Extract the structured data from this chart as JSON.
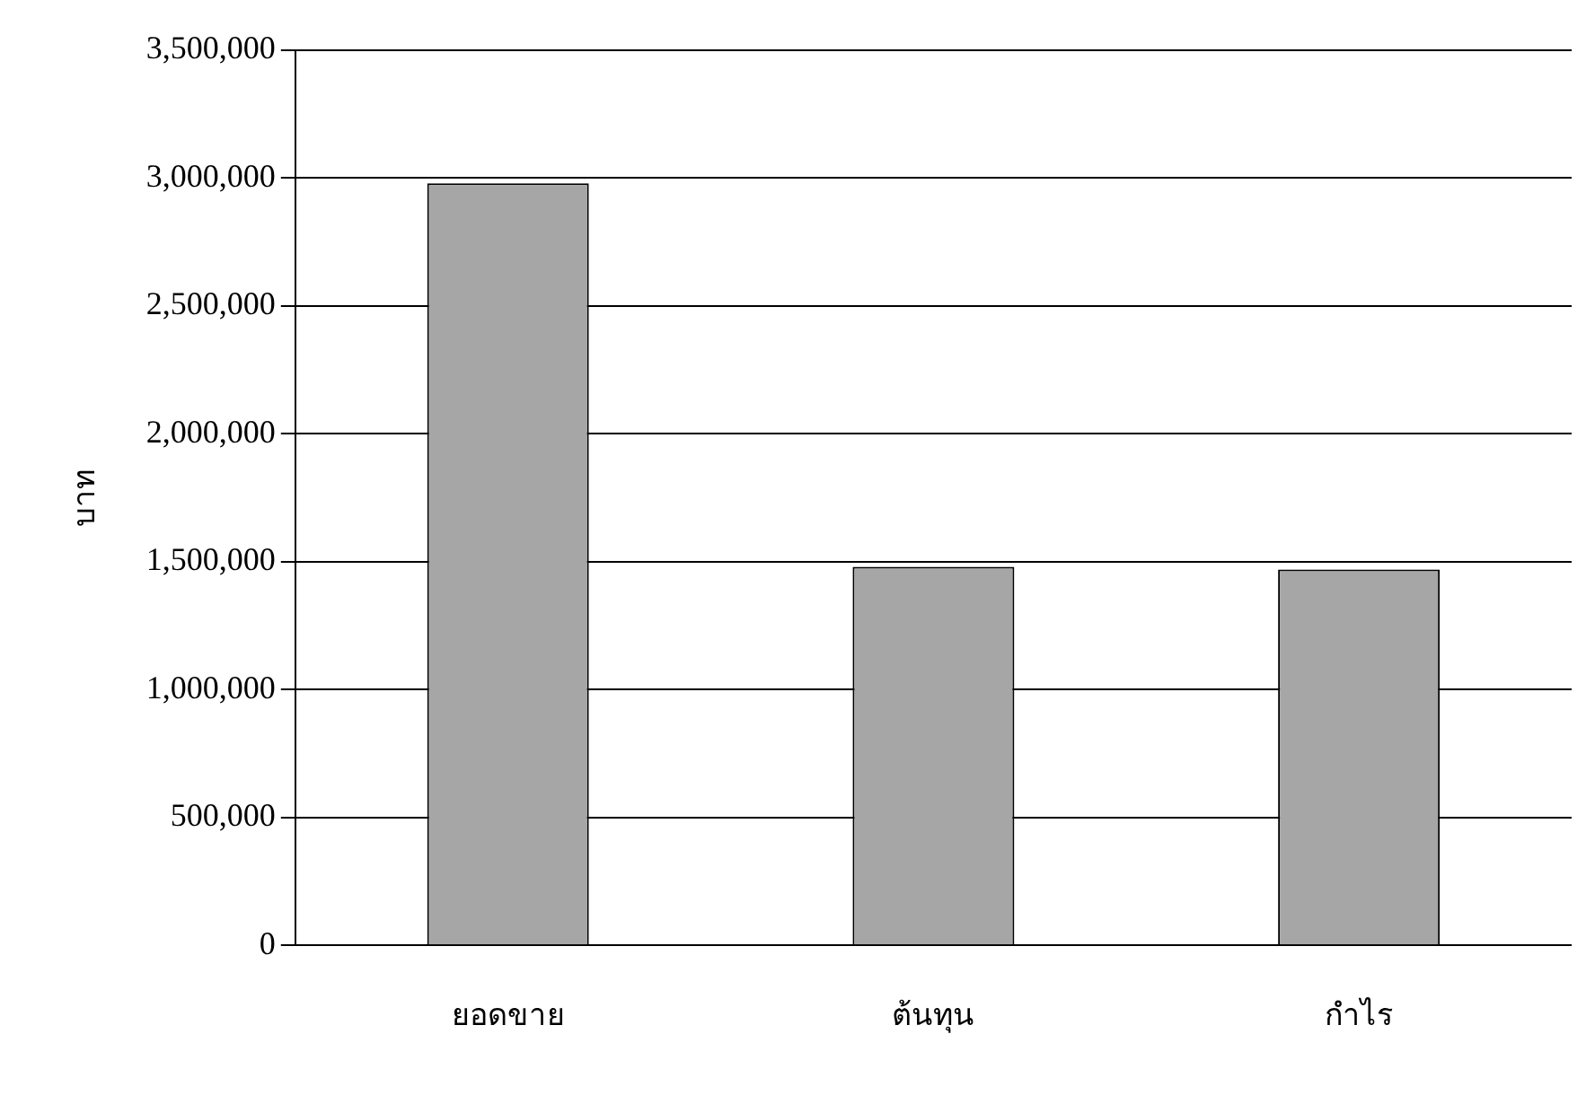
{
  "chart_data": {
    "type": "bar",
    "ylabel": "บาท",
    "categories": [
      "ยอดขาย",
      "ต้นทุน",
      "กำไร"
    ],
    "values": [
      2980000,
      1480000,
      1470000
    ],
    "color": "#a6a6a6",
    "ylim": [
      0,
      3500000
    ],
    "yticks": [
      0,
      {
        "value": 500000,
        "label": "500,000"
      },
      {
        "value": 1000000,
        "label": "1,000,000"
      },
      {
        "value": 1500000,
        "label": "1,500,000"
      },
      {
        "value": 2000000,
        "label": "2,000,000"
      },
      {
        "value": 2500000,
        "label": "2,500,000"
      },
      {
        "value": 3000000,
        "label": "3,000,000"
      },
      {
        "value": 3500000,
        "label": "3,500,000"
      }
    ],
    "grid": "y",
    "legend": false
  }
}
